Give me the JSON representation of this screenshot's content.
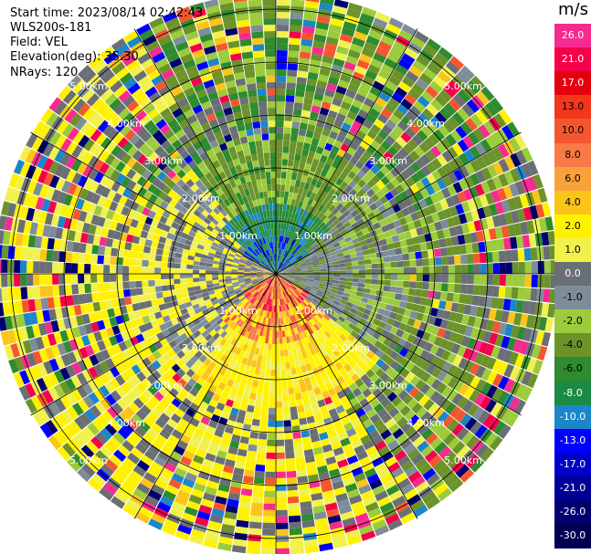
{
  "header": {
    "start_time": "Start time: 2023/08/14 02:42:43",
    "instrument": "WLS200s-181",
    "field": "Field: VEL",
    "elevation": "Elevation(deg): 35.30",
    "nrays": "NRays: 120"
  },
  "colorbar": {
    "unit": "m/s",
    "levels": [
      {
        "label": "26.0",
        "color": "#f72a8f"
      },
      {
        "label": "21.0",
        "color": "#f5004a"
      },
      {
        "label": "17.0",
        "color": "#e5000f"
      },
      {
        "label": "13.0",
        "color": "#f3361c"
      },
      {
        "label": "10.0",
        "color": "#f4572f"
      },
      {
        "label": "8.0",
        "color": "#f77a47"
      },
      {
        "label": "6.0",
        "color": "#f9a23d"
      },
      {
        "label": "4.0",
        "color": "#fbc41a"
      },
      {
        "label": "2.0",
        "color": "#fff200"
      },
      {
        "label": "1.0",
        "color": "#f1f14e"
      },
      {
        "label": "0.0",
        "color": "#6a6f74"
      },
      {
        "label": "-1.0",
        "color": "#7d8d9a"
      },
      {
        "label": "-2.0",
        "color": "#9ccb3c"
      },
      {
        "label": "-4.0",
        "color": "#6c922a"
      },
      {
        "label": "-6.0",
        "color": "#2e8b2e"
      },
      {
        "label": "-8.0",
        "color": "#1a8a46"
      },
      {
        "label": "-10.0",
        "color": "#1b86c9"
      },
      {
        "label": "-13.0",
        "color": "#0000ff"
      },
      {
        "label": "-17.0",
        "color": "#0000c8"
      },
      {
        "label": "-21.0",
        "color": "#000096"
      },
      {
        "label": "-26.0",
        "color": "#000070"
      },
      {
        "label": "-30.0",
        "color": "#000050"
      }
    ]
  },
  "range_rings": {
    "labels": [
      "1.00km",
      "2.00km",
      "3.00km",
      "4.00km",
      "5.00km"
    ]
  },
  "colors": {
    "gate_colors": [
      "#fff200",
      "#f1f14e",
      "#6a6f74",
      "#7d8d9a",
      "#9ccb3c",
      "#6c922a",
      "#2e8b2e",
      "#1b86c9",
      "#0000ff",
      "#000070",
      "#f72a8f",
      "#f5004a",
      "#f4572f",
      "#fbc41a"
    ],
    "ring_color": "#000000"
  }
}
